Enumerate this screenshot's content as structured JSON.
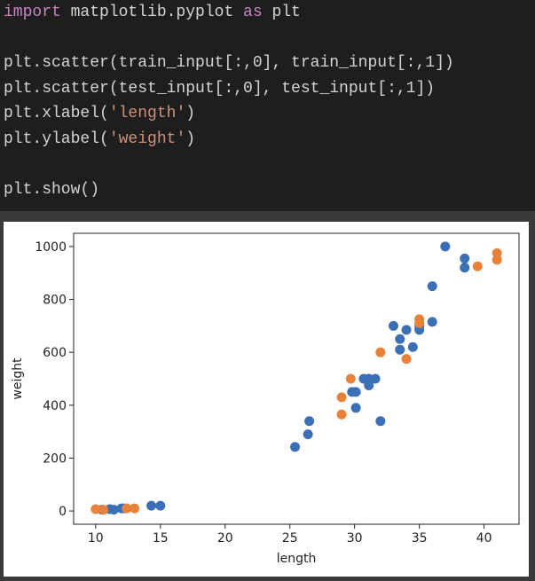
{
  "code": {
    "blocks": [
      [
        [
          {
            "text": "import",
            "color": "#c586c0"
          },
          {
            "text": " matplotlib.pyplot "
          },
          {
            "text": "as",
            "color": "#c586c0"
          },
          {
            "text": " plt"
          }
        ]
      ],
      [
        [
          {
            "text": "plt.scatter(train_input[:,0], train_input[:,1])"
          }
        ],
        [
          {
            "text": "plt.scatter(test_input[:,0], test_input[:,1])"
          }
        ],
        [
          {
            "text": "plt.xlabel("
          },
          {
            "text": "'length'",
            "color": "#ce9178"
          },
          {
            "text": ")"
          }
        ],
        [
          {
            "text": "plt.ylabel("
          },
          {
            "text": "'weight'",
            "color": "#ce9178"
          },
          {
            "text": ")"
          }
        ]
      ],
      [
        [
          {
            "text": "plt.show()"
          }
        ]
      ]
    ]
  },
  "chart_data": {
    "type": "scatter",
    "xlabel": "length",
    "ylabel": "weight",
    "xlim": [
      8.3,
      42.7
    ],
    "ylim": [
      -50,
      1050
    ],
    "xticks": [
      10,
      15,
      20,
      25,
      30,
      35,
      40
    ],
    "yticks": [
      0,
      200,
      400,
      600,
      800,
      1000
    ],
    "series": [
      {
        "color": "#3b6fb6",
        "x": [
          10.5,
          11.1,
          11.4,
          12.0,
          12.2,
          14.3,
          15.0,
          25.4,
          26.4,
          26.5,
          29.8,
          30.1,
          30.1,
          30.7,
          31.1,
          31.1,
          31.6,
          32.0,
          33.0,
          33.5,
          33.5,
          34.0,
          34.5,
          35.0,
          35.0,
          36.0,
          36.0,
          37.0,
          38.5,
          38.5
        ],
        "y": [
          5,
          7,
          5,
          10,
          10,
          20,
          20,
          242,
          290,
          340,
          450,
          450,
          390,
          500,
          500,
          475,
          500,
          340,
          700,
          650,
          610,
          685,
          620,
          685,
          700,
          715,
          850,
          1000,
          955,
          920
        ]
      },
      {
        "color": "#e8823a",
        "x": [
          10.0,
          10.6,
          12.4,
          13.0,
          29.0,
          29.0,
          29.7,
          32.0,
          34.0,
          35.0,
          35.0,
          39.5,
          41.0,
          41.0
        ],
        "y": [
          7,
          5,
          10,
          10,
          430,
          365,
          500,
          600,
          575,
          725,
          710,
          925,
          975,
          950
        ]
      }
    ]
  }
}
